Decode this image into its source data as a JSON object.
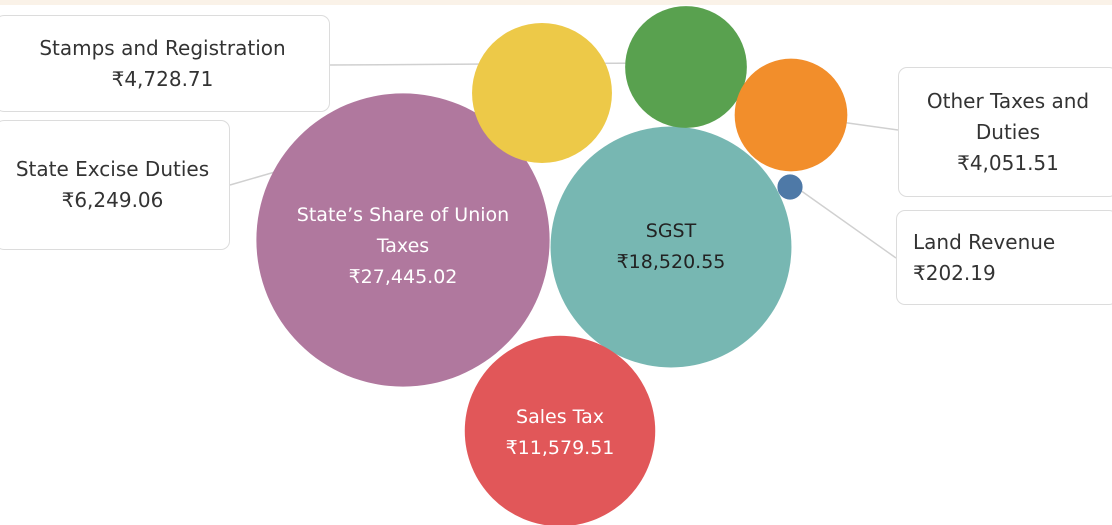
{
  "chart_data": {
    "type": "bubble",
    "categories": [
      "State’s Share of Union Taxes",
      "SGST",
      "Sales Tax",
      "State Excise Duties",
      "Stamps and Registration",
      "Other Taxes and Duties",
      "Land Revenue"
    ],
    "values": [
      27445.02,
      18520.55,
      11579.51,
      6249.06,
      4728.71,
      4051.51,
      202.19
    ],
    "value_labels": [
      "₹27,445.02",
      "₹18,520.55",
      "₹11,579.51",
      "₹6,249.06",
      "₹4,728.71",
      "₹4,051.51",
      "₹202.19"
    ],
    "colors": [
      "#b0789e",
      "#77b7b2",
      "#e15759",
      "#edc948",
      "#59a14f",
      "#f28e2b",
      "#4e79a7"
    ]
  }
}
